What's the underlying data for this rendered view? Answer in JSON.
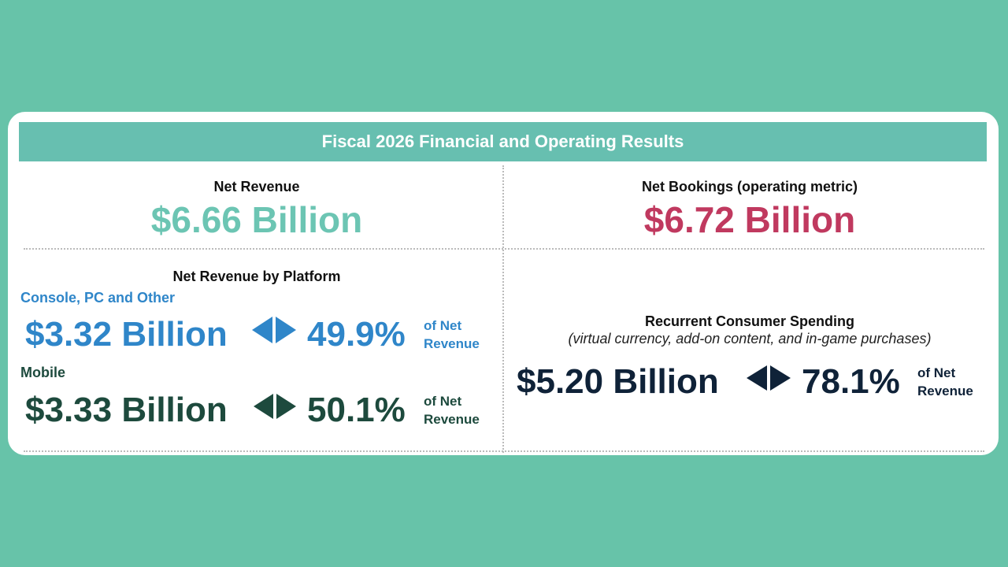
{
  "header": {
    "title": "Fiscal 2026 Financial and Operating Results"
  },
  "net_revenue": {
    "label": "Net Revenue",
    "value": "$6.66 Billion"
  },
  "net_bookings": {
    "label": "Net Bookings (operating metric)",
    "value": "$6.72 Billion"
  },
  "platform": {
    "title": "Net Revenue by Platform",
    "rows": [
      {
        "name": "Console, PC and Other",
        "amount": "$3.32 Billion",
        "share": "49.9%",
        "note": "of Net Revenue"
      },
      {
        "name": "Mobile",
        "amount": "$3.33 Billion",
        "share": "50.1%",
        "note": "of Net Revenue"
      }
    ]
  },
  "recurrent": {
    "title": "Recurrent Consumer Spending",
    "subtitle": "(virtual currency, add-on content, and in-game purchases)",
    "amount": "$5.20 Billion",
    "share": "78.1%",
    "note": "of Net Revenue"
  }
}
